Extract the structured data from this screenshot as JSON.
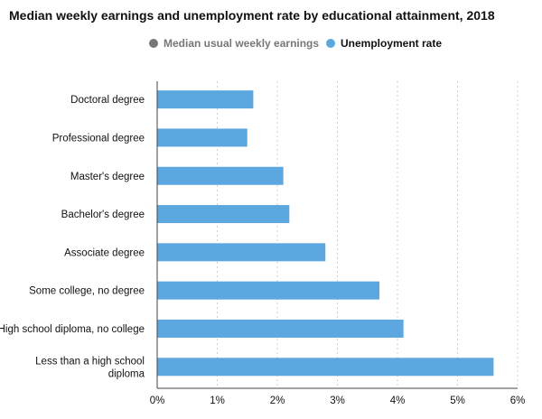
{
  "title": "Median weekly earnings and unemployment rate by educational attainment, 2018",
  "legend": [
    {
      "label": "Median usual weekly earnings",
      "color": "#777777",
      "text_color": "#777777"
    },
    {
      "label": "Unemployment rate",
      "color": "#5ca7e0",
      "text_color": "#111111"
    }
  ],
  "chart_data": {
    "type": "bar",
    "orientation": "horizontal",
    "title": "Median weekly earnings and unemployment rate by educational attainment, 2018",
    "categories": [
      [
        "Doctoral degree"
      ],
      [
        "Professional degree"
      ],
      [
        "Master's degree"
      ],
      [
        "Bachelor's degree"
      ],
      [
        "Associate degree"
      ],
      [
        "Some college, no degree"
      ],
      [
        "High school diploma, no college"
      ],
      [
        "Less than a high school",
        "diploma"
      ]
    ],
    "series": [
      {
        "name": "Unemployment rate",
        "values": [
          1.6,
          1.5,
          2.1,
          2.2,
          2.8,
          3.7,
          4.1,
          5.6
        ],
        "color": "#5ca7e0"
      }
    ],
    "xticks": [
      "0%",
      "1%",
      "2%",
      "3%",
      "4%",
      "5%",
      "6%"
    ],
    "xlim": [
      0,
      6
    ],
    "grid": "vertical dotted",
    "legend_position": "top"
  }
}
